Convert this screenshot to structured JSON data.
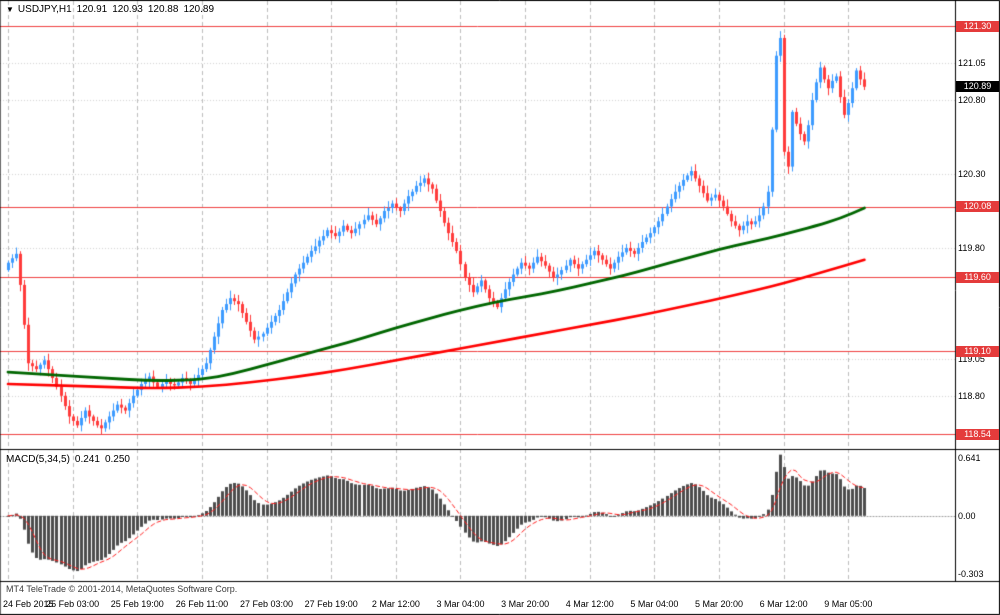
{
  "header": {
    "icon": "▼",
    "symbol": "USDJPY,H1",
    "open": "120.91",
    "high": "120.93",
    "low": "120.88",
    "close": "120.89"
  },
  "macd_header": {
    "label": "MACD(5,34,5)",
    "value_main": "0.241",
    "value_signal": "0.250"
  },
  "footer": {
    "copyright": "MT4 TeleTrade © 2001-2014, MetaQuotes Software Corp."
  },
  "colors": {
    "up_candle": "#3d9bff",
    "down_candle": "#ff3b3b",
    "ma_green": "#006600",
    "ma_red": "#ff0000",
    "level_line": "#f04040",
    "level_tag_bg": "#e43b3b",
    "current_tag_bg": "#000000",
    "histogram": "#4d4d4d",
    "signal_line": "#ff2020",
    "grid_h": "#d4d4d4",
    "grid_v": "#bdbdbd",
    "zero_line": "#999999"
  },
  "chart_data": {
    "type": "candlestick",
    "symbol": "USDJPY",
    "timeframe": "H1",
    "title": "USDJPY,H1",
    "current_price": 120.89,
    "first_open": 119.65,
    "price_axis": {
      "min": 118.44,
      "max": 121.47,
      "labels": [
        121.05,
        120.8,
        120.3,
        119.8,
        119.05,
        118.8
      ]
    },
    "levels": [
      121.3,
      120.08,
      119.6,
      119.1,
      118.54
    ],
    "time_labels": [
      {
        "index": 0,
        "label": "24 Feb 2015"
      },
      {
        "index": 16,
        "label": "25 Feb 03:00"
      },
      {
        "index": 32,
        "label": "25 Feb 19:00"
      },
      {
        "index": 48,
        "label": "26 Feb 11:00"
      },
      {
        "index": 64,
        "label": "27 Feb 03:00"
      },
      {
        "index": 80,
        "label": "27 Feb 19:00"
      },
      {
        "index": 96,
        "label": "2 Mar 12:00"
      },
      {
        "index": 112,
        "label": "3 Mar 04:00"
      },
      {
        "index": 128,
        "label": "3 Mar 20:00"
      },
      {
        "index": 144,
        "label": "4 Mar 12:00"
      },
      {
        "index": 160,
        "label": "5 Mar 04:00"
      },
      {
        "index": 176,
        "label": "5 Mar 20:00"
      },
      {
        "index": 192,
        "label": "6 Mar 12:00"
      },
      {
        "index": 208,
        "label": "9 Mar 05:00"
      }
    ],
    "closes": [
      119.7,
      119.73,
      119.76,
      119.55,
      119.28,
      119.02,
      119.0,
      118.98,
      119.01,
      119.04,
      118.98,
      118.92,
      118.86,
      118.8,
      118.73,
      118.66,
      118.63,
      118.6,
      118.65,
      118.7,
      118.66,
      118.63,
      118.6,
      118.58,
      118.62,
      118.66,
      118.7,
      118.74,
      118.72,
      118.7,
      118.75,
      118.8,
      118.84,
      118.88,
      118.9,
      118.93,
      118.89,
      118.86,
      118.88,
      118.9,
      118.88,
      118.87,
      118.89,
      118.92,
      118.9,
      118.88,
      118.91,
      118.94,
      118.98,
      119.02,
      119.11,
      119.2,
      119.29,
      119.38,
      119.42,
      119.46,
      119.44,
      119.42,
      119.36,
      119.3,
      119.24,
      119.18,
      119.2,
      119.22,
      119.26,
      119.3,
      119.34,
      119.38,
      119.44,
      119.5,
      119.56,
      119.62,
      119.66,
      119.7,
      119.74,
      119.78,
      119.81,
      119.85,
      119.88,
      119.92,
      119.9,
      119.88,
      119.91,
      119.95,
      119.92,
      119.9,
      119.93,
      119.96,
      119.99,
      120.02,
      119.99,
      119.96,
      120.0,
      120.05,
      120.07,
      120.1,
      120.07,
      120.05,
      120.1,
      120.15,
      120.18,
      120.22,
      120.24,
      120.27,
      120.23,
      120.2,
      120.12,
      120.05,
      119.97,
      119.9,
      119.84,
      119.78,
      119.69,
      119.6,
      119.55,
      119.5,
      119.54,
      119.58,
      119.52,
      119.46,
      119.43,
      119.4,
      119.46,
      119.52,
      119.57,
      119.62,
      119.66,
      119.7,
      119.68,
      119.66,
      119.7,
      119.74,
      119.71,
      119.68,
      119.64,
      119.6,
      119.62,
      119.65,
      119.68,
      119.72,
      119.69,
      119.66,
      119.69,
      119.72,
      119.75,
      119.78,
      119.75,
      119.72,
      119.69,
      119.66,
      119.7,
      119.74,
      119.77,
      119.8,
      119.78,
      119.76,
      119.8,
      119.84,
      119.87,
      119.9,
      119.94,
      119.98,
      120.03,
      120.08,
      120.13,
      120.18,
      120.22,
      120.26,
      120.29,
      120.32,
      120.27,
      120.22,
      120.17,
      120.12,
      120.14,
      120.16,
      120.12,
      120.08,
      120.03,
      119.98,
      119.95,
      119.92,
      119.95,
      119.98,
      119.96,
      119.98,
      120.02,
      120.08,
      120.18,
      120.6,
      121.1,
      121.22,
      120.45,
      120.35,
      120.72,
      120.64,
      120.57,
      120.52,
      120.63,
      120.8,
      120.92,
      121.02,
      120.94,
      120.88,
      120.93,
      120.96,
      120.82,
      120.7,
      120.78,
      120.88,
      121.0,
      120.94,
      120.89
    ],
    "ma_green": [
      [
        0,
        118.96
      ],
      [
        12,
        118.94
      ],
      [
        24,
        118.92
      ],
      [
        36,
        118.9
      ],
      [
        48,
        118.91
      ],
      [
        56,
        118.95
      ],
      [
        64,
        119.01
      ],
      [
        72,
        119.07
      ],
      [
        80,
        119.13
      ],
      [
        88,
        119.19
      ],
      [
        96,
        119.26
      ],
      [
        104,
        119.32
      ],
      [
        112,
        119.38
      ],
      [
        120,
        119.43
      ],
      [
        128,
        119.47
      ],
      [
        136,
        119.51
      ],
      [
        144,
        119.56
      ],
      [
        152,
        119.61
      ],
      [
        160,
        119.67
      ],
      [
        168,
        119.73
      ],
      [
        176,
        119.79
      ],
      [
        184,
        119.84
      ],
      [
        192,
        119.89
      ],
      [
        200,
        119.95
      ],
      [
        206,
        120.0
      ],
      [
        212,
        120.07
      ]
    ],
    "ma_red": [
      [
        0,
        118.88
      ],
      [
        12,
        118.87
      ],
      [
        24,
        118.86
      ],
      [
        36,
        118.85
      ],
      [
        48,
        118.86
      ],
      [
        60,
        118.89
      ],
      [
        72,
        118.93
      ],
      [
        84,
        118.98
      ],
      [
        96,
        119.04
      ],
      [
        108,
        119.1
      ],
      [
        120,
        119.16
      ],
      [
        132,
        119.22
      ],
      [
        144,
        119.28
      ],
      [
        156,
        119.34
      ],
      [
        168,
        119.41
      ],
      [
        180,
        119.48
      ],
      [
        192,
        119.56
      ],
      [
        202,
        119.64
      ],
      [
        212,
        119.72
      ]
    ],
    "macd": {
      "label": "MACD(5,34,5)",
      "fast": 5,
      "slow": 34,
      "signal": 5,
      "current_main": 0.241,
      "current_signal": 0.25,
      "axis_labels": [
        "0.641",
        "0.00",
        "-0.303"
      ]
    }
  }
}
